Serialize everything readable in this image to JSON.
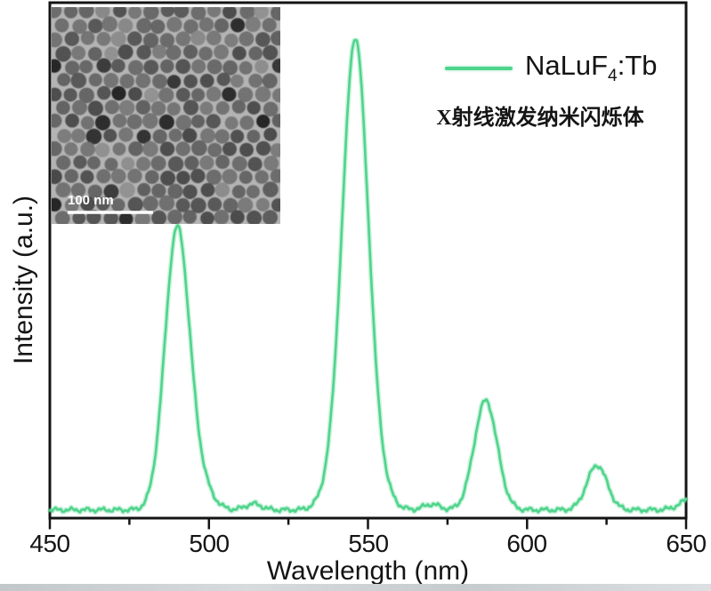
{
  "chart_data": {
    "type": "line",
    "title": "",
    "xlabel": "Wavelength (nm)",
    "ylabel": "Intensity (a.u.)",
    "xlim": [
      450,
      650
    ],
    "ylim_relative": [
      0,
      1.1
    ],
    "grid": false,
    "x_tick_labels": [
      "450",
      "500",
      "550",
      "600",
      "650"
    ],
    "x_major_ticks": [
      450,
      500,
      550,
      600,
      650
    ],
    "x_minor_ticks": [
      475,
      525,
      575,
      625
    ],
    "axis_color": "#141414",
    "legend": {
      "position": "upper-right-inside",
      "label_full": "NaLuF4:Tb",
      "label_parts": {
        "pre": "NaLuF",
        "sub": "4",
        "post": ":Tb"
      },
      "line_color": "#4fd48c"
    },
    "subtitle_cn": "X射线激发纳米闪烁体",
    "series": [
      {
        "name": "NaLuF4:Tb",
        "color": "#4fd48c",
        "line_width": 2.6,
        "baseline_intensity": 0.012,
        "peaks": [
          {
            "center_nm": 490,
            "rel_height": 0.6,
            "fwhm_nm": 9.0
          },
          {
            "center_nm": 497,
            "rel_height": 0.05,
            "fwhm_nm": 9.0
          },
          {
            "center_nm": 514,
            "rel_height": 0.013,
            "fwhm_nm": 6.0
          },
          {
            "center_nm": 539,
            "rel_height": 0.035,
            "fwhm_nm": 9.0
          },
          {
            "center_nm": 546,
            "rel_height": 1.0,
            "fwhm_nm": 9.5
          },
          {
            "center_nm": 553,
            "rel_height": 0.045,
            "fwhm_nm": 9.0
          },
          {
            "center_nm": 570,
            "rel_height": 0.012,
            "fwhm_nm": 6.0
          },
          {
            "center_nm": 587,
            "rel_height": 0.235,
            "fwhm_nm": 8.5
          },
          {
            "center_nm": 622,
            "rel_height": 0.096,
            "fwhm_nm": 7.5
          },
          {
            "center_nm": 654,
            "rel_height": 0.035,
            "fwhm_nm": 10.0
          }
        ]
      }
    ],
    "inset": {
      "type": "TEM micrograph",
      "description": "monolayer of uniform spherical nanoparticles, hexagonally close packed",
      "scale_bar_label": "100 nm",
      "position": "upper-left-inside"
    }
  }
}
